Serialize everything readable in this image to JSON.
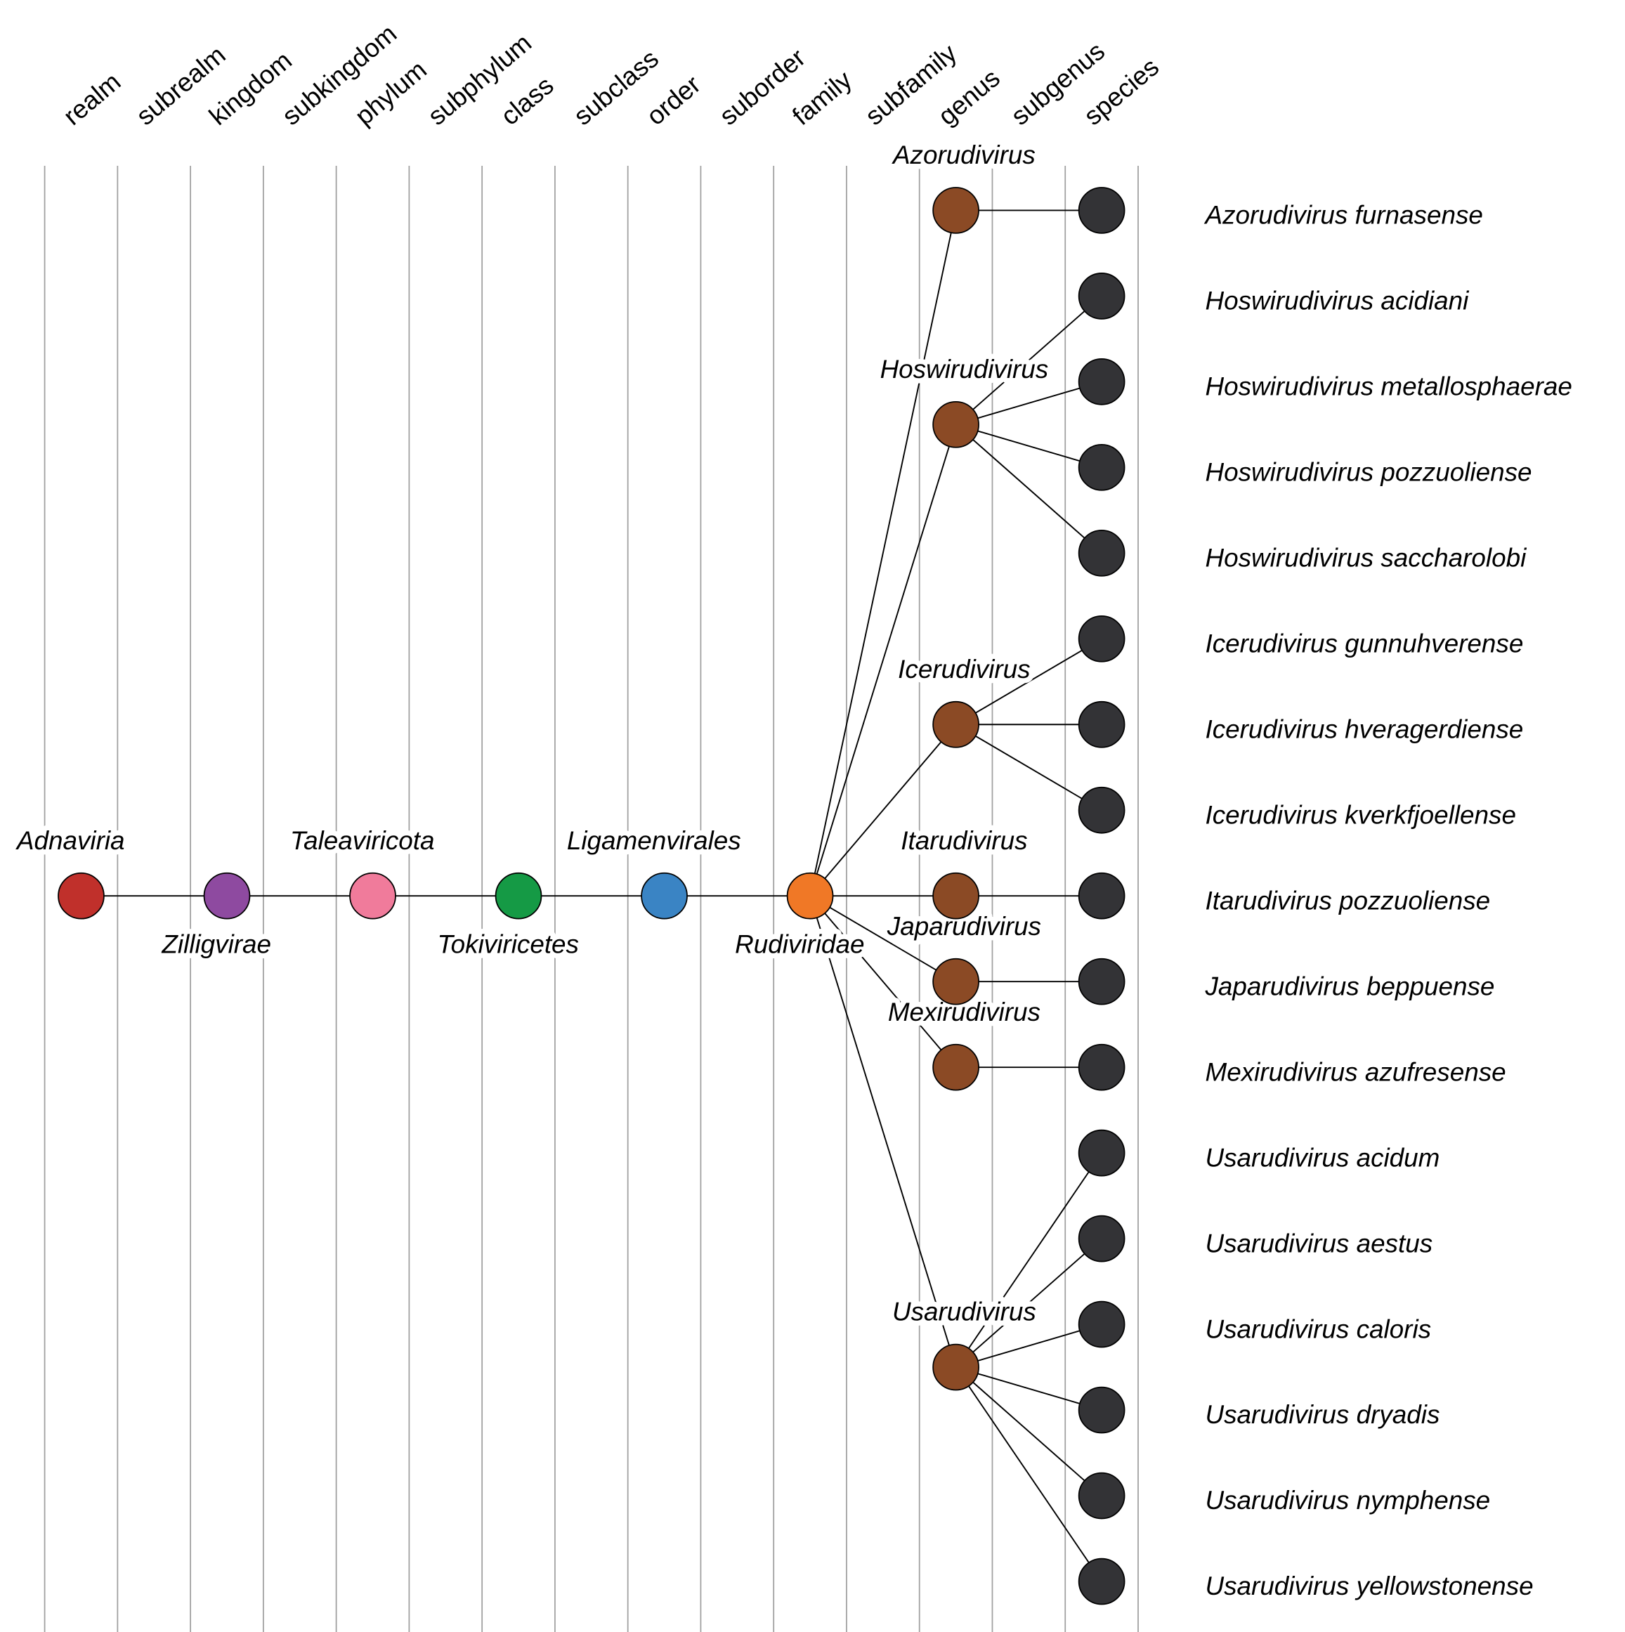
{
  "ranks": [
    "realm",
    "subrealm",
    "kingdom",
    "subkingdom",
    "phylum",
    "subphylum",
    "class",
    "subclass",
    "order",
    "suborder",
    "family",
    "subfamily",
    "genus",
    "subgenus",
    "species"
  ],
  "lineage": [
    {
      "rank": "realm",
      "name": "Adnaviria",
      "color": "#c0302b"
    },
    {
      "rank": "kingdom",
      "name": "Zilligvirae",
      "color": "#8e4aa0"
    },
    {
      "rank": "phylum",
      "name": "Taleaviricota",
      "color": "#f07b9b"
    },
    {
      "rank": "class",
      "name": "Tokiviricetes",
      "color": "#159a45"
    },
    {
      "rank": "order",
      "name": "Ligamenvirales",
      "color": "#3a84c4"
    },
    {
      "rank": "family",
      "name": "Rudiviridae",
      "color": "#f07826"
    }
  ],
  "genus_color": "#8b4a25",
  "species_color": "#333336",
  "genera": [
    {
      "name": "Azorudivirus",
      "species": [
        "Azorudivirus furnasense"
      ]
    },
    {
      "name": "Hoswirudivirus",
      "species": [
        "Hoswirudivirus acidiani",
        "Hoswirudivirus metallosphaerae",
        "Hoswirudivirus pozzuoliense",
        "Hoswirudivirus saccharolobi"
      ]
    },
    {
      "name": "Icerudivirus",
      "species": [
        "Icerudivirus gunnuhverense",
        "Icerudivirus hveragerdiense",
        "Icerudivirus kverkfjoellense"
      ]
    },
    {
      "name": "Itarudivirus",
      "species": [
        "Itarudivirus pozzuoliense"
      ]
    },
    {
      "name": "Japarudivirus",
      "species": [
        "Japarudivirus beppuense"
      ]
    },
    {
      "name": "Mexirudivirus",
      "species": [
        "Mexirudivirus azufresense"
      ]
    },
    {
      "name": "Usarudivirus",
      "species": [
        "Usarudivirus acidum",
        "Usarudivirus aestus",
        "Usarudivirus caloris",
        "Usarudivirus dryadis",
        "Usarudivirus nymphense",
        "Usarudivirus yellowstonense"
      ]
    }
  ]
}
